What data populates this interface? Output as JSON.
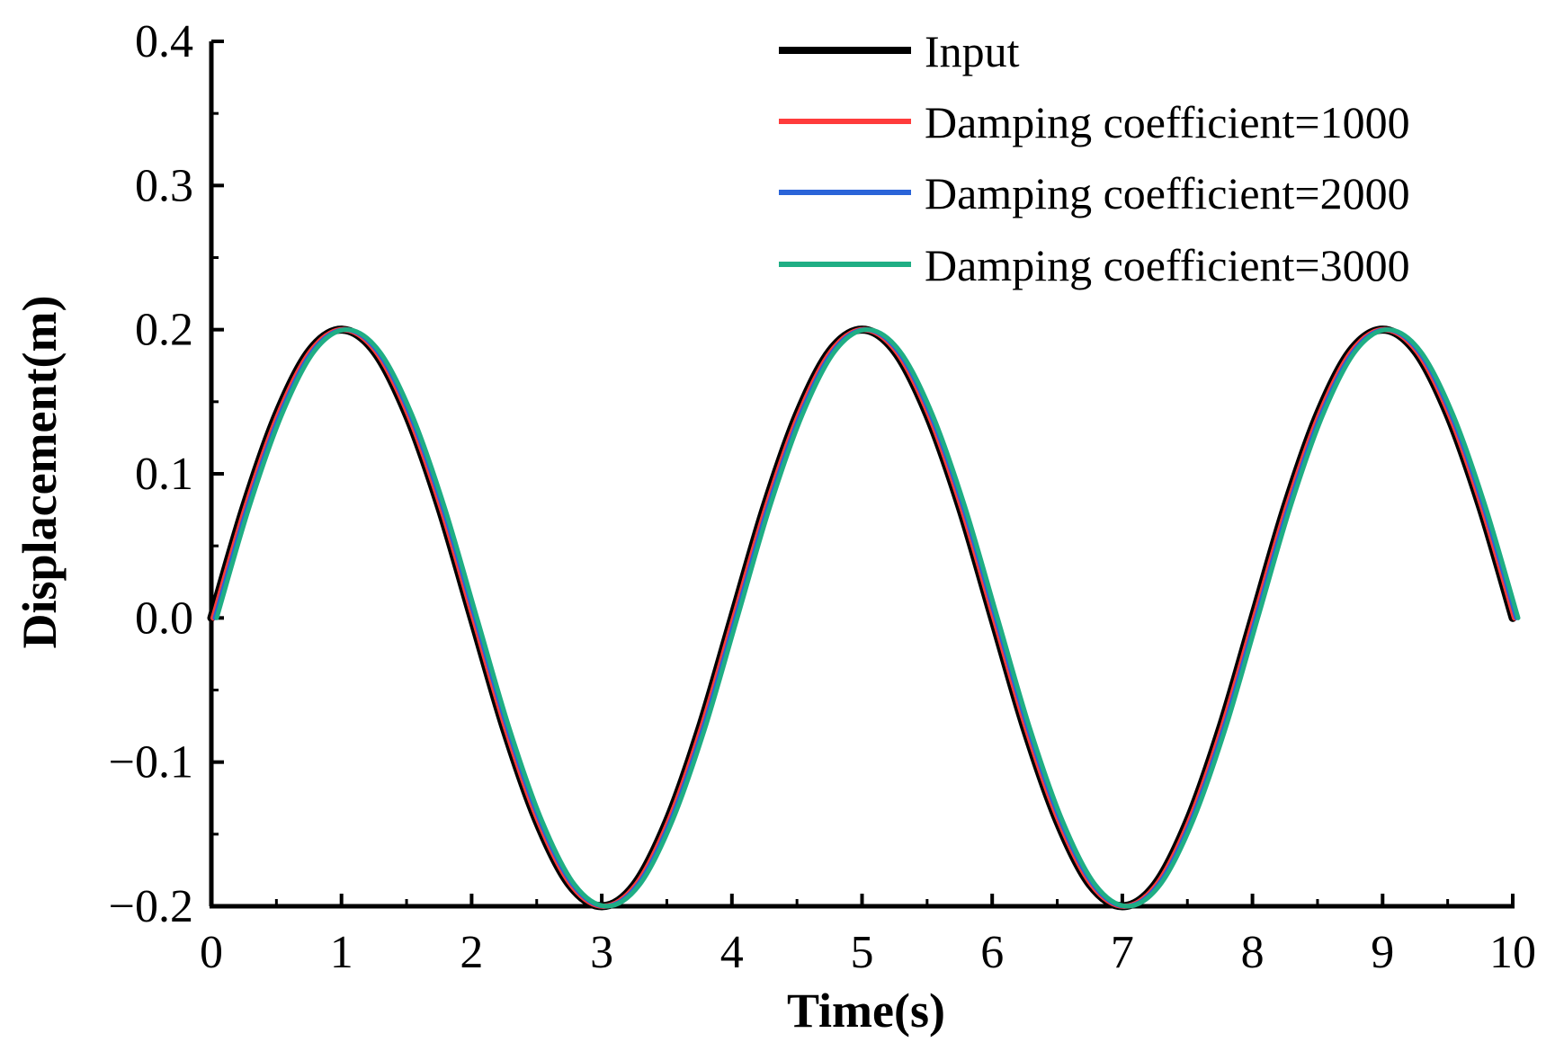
{
  "chart_data": {
    "type": "line",
    "xlabel": "Time(s)",
    "ylabel": "Displacement(m)",
    "xlim": [
      0,
      10
    ],
    "ylim": [
      -0.2,
      0.4
    ],
    "x_ticks": [
      0,
      1,
      2,
      3,
      4,
      5,
      6,
      7,
      8,
      9,
      10
    ],
    "x_tick_labels": [
      "0",
      "1",
      "2",
      "3",
      "4",
      "5",
      "6",
      "7",
      "8",
      "9",
      "10"
    ],
    "y_ticks": [
      -0.2,
      -0.1,
      0.0,
      0.1,
      0.2,
      0.3,
      0.4
    ],
    "y_tick_labels": [
      "−0.2",
      "−0.1",
      "0.0",
      "0.1",
      "0.2",
      "0.3",
      "0.4"
    ],
    "grid": false,
    "legend_position": "top-right",
    "x": [
      0,
      0.25,
      0.5,
      0.75,
      1,
      1.25,
      1.5,
      1.75,
      2,
      2.25,
      2.5,
      2.75,
      3,
      3.25,
      3.5,
      3.75,
      4,
      4.25,
      4.5,
      4.75,
      5,
      5.25,
      5.5,
      5.75,
      6,
      6.25,
      6.5,
      6.75,
      7,
      7.25,
      7.5,
      7.75,
      8,
      8.25,
      8.5,
      8.75,
      9,
      9.25,
      9.5,
      9.75,
      10
    ],
    "series": [
      {
        "name": "Input",
        "color": "#000000",
        "values": [
          0,
          0.077,
          0.141,
          0.185,
          0.2,
          0.185,
          0.141,
          0.077,
          0,
          -0.077,
          -0.141,
          -0.185,
          -0.2,
          -0.185,
          -0.141,
          -0.077,
          0,
          0.077,
          0.141,
          0.185,
          0.2,
          0.185,
          0.141,
          0.077,
          0,
          -0.077,
          -0.141,
          -0.185,
          -0.2,
          -0.185,
          -0.141,
          -0.077,
          0,
          0.077,
          0.141,
          0.185,
          0.2,
          0.185,
          0.141,
          0.077,
          0
        ]
      },
      {
        "name": "Damping coefficient=1000",
        "color": "#ff3b3b",
        "values": [
          0,
          0.077,
          0.141,
          0.185,
          0.2,
          0.185,
          0.141,
          0.077,
          0,
          -0.077,
          -0.141,
          -0.185,
          -0.2,
          -0.185,
          -0.141,
          -0.077,
          0,
          0.077,
          0.141,
          0.185,
          0.2,
          0.185,
          0.141,
          0.077,
          0,
          -0.077,
          -0.141,
          -0.185,
          -0.2,
          -0.185,
          -0.141,
          -0.077,
          0,
          0.077,
          0.141,
          0.185,
          0.2,
          0.185,
          0.141,
          0.077,
          0
        ]
      },
      {
        "name": "Damping coefficient=2000",
        "color": "#2a64d8",
        "values": [
          0,
          0.077,
          0.141,
          0.185,
          0.2,
          0.185,
          0.141,
          0.077,
          0,
          -0.077,
          -0.141,
          -0.185,
          -0.2,
          -0.185,
          -0.141,
          -0.077,
          0,
          0.077,
          0.141,
          0.185,
          0.2,
          0.185,
          0.141,
          0.077,
          0,
          -0.077,
          -0.141,
          -0.185,
          -0.2,
          -0.185,
          -0.141,
          -0.077,
          0,
          0.077,
          0.141,
          0.185,
          0.2,
          0.185,
          0.141,
          0.077,
          0
        ]
      },
      {
        "name": "Damping coefficient=3000",
        "color": "#1fae84",
        "values": [
          0,
          0.077,
          0.141,
          0.185,
          0.2,
          0.185,
          0.141,
          0.077,
          0,
          -0.077,
          -0.141,
          -0.185,
          -0.2,
          -0.185,
          -0.141,
          -0.077,
          0,
          0.077,
          0.141,
          0.185,
          0.2,
          0.185,
          0.141,
          0.077,
          0,
          -0.077,
          -0.141,
          -0.185,
          -0.2,
          -0.185,
          -0.141,
          -0.077,
          0,
          0.077,
          0.141,
          0.185,
          0.2,
          0.185,
          0.141,
          0.077,
          0
        ]
      }
    ]
  }
}
